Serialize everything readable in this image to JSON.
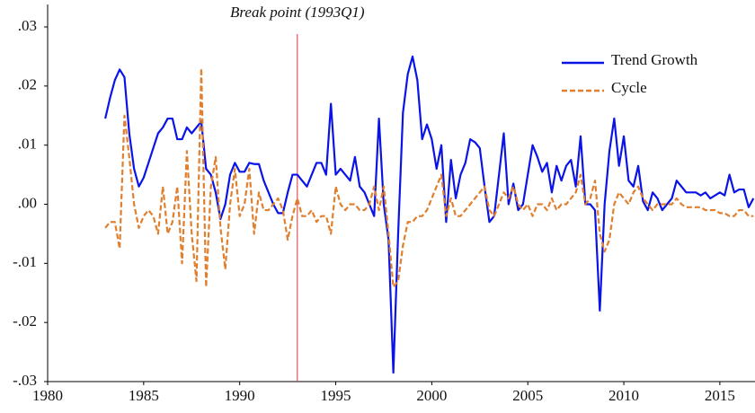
{
  "chart_data": {
    "type": "line",
    "annotation": {
      "x": 1993,
      "label": "Break point (1993Q1)",
      "color": "#e0353a"
    },
    "x": [
      1983,
      1983.25,
      1983.5,
      1983.75,
      1984,
      1984.25,
      1984.5,
      1984.75,
      1985,
      1985.25,
      1985.5,
      1985.75,
      1986,
      1986.25,
      1986.5,
      1986.75,
      1987,
      1987.25,
      1987.5,
      1987.75,
      1988,
      1988.25,
      1988.5,
      1988.75,
      1989,
      1989.25,
      1989.5,
      1989.75,
      1990,
      1990.25,
      1990.5,
      1990.75,
      1991,
      1991.25,
      1991.5,
      1991.75,
      1992,
      1992.25,
      1992.5,
      1992.75,
      1993,
      1993.25,
      1993.5,
      1993.75,
      1994,
      1994.25,
      1994.5,
      1994.75,
      1995,
      1995.25,
      1995.5,
      1995.75,
      1996,
      1996.25,
      1996.5,
      1996.75,
      1997,
      1997.25,
      1997.5,
      1997.75,
      1998,
      1998.25,
      1998.5,
      1998.75,
      1999,
      1999.25,
      1999.5,
      1999.75,
      2000,
      2000.25,
      2000.5,
      2000.75,
      2001,
      2001.25,
      2001.5,
      2001.75,
      2002,
      2002.25,
      2002.5,
      2002.75,
      2003,
      2003.25,
      2003.5,
      2003.75,
      2004,
      2004.25,
      2004.5,
      2004.75,
      2005,
      2005.25,
      2005.5,
      2005.75,
      2006,
      2006.25,
      2006.5,
      2006.75,
      2007,
      2007.25,
      2007.5,
      2007.75,
      2008,
      2008.25,
      2008.5,
      2008.75,
      2009,
      2009.25,
      2009.5,
      2009.75,
      2010,
      2010.25,
      2010.5,
      2010.75,
      2011,
      2011.25,
      2011.5,
      2011.75,
      2012,
      2012.25,
      2012.5,
      2012.75,
      2013,
      2013.25,
      2013.5,
      2013.75,
      2014,
      2014.25,
      2014.5,
      2014.75,
      2015,
      2015.25,
      2015.5,
      2015.75,
      2016,
      2016.25,
      2016.5,
      2016.75
    ],
    "series": [
      {
        "name": "Trend Growth",
        "color": "#0a14e6",
        "dash": false,
        "values": [
          0.0145,
          0.018,
          0.021,
          0.0228,
          0.0215,
          0.012,
          0.006,
          0.003,
          0.0045,
          0.007,
          0.0095,
          0.012,
          0.013,
          0.0145,
          0.0145,
          0.011,
          0.011,
          0.013,
          0.012,
          0.013,
          0.014,
          0.006,
          0.005,
          0.002,
          -0.0025,
          0,
          0.005,
          0.007,
          0.0055,
          0.0055,
          0.007,
          0.0068,
          0.0068,
          0.004,
          0.002,
          0,
          -0.0015,
          -0.0015,
          0.002,
          0.005,
          0.005,
          0.004,
          0.003,
          0.005,
          0.007,
          0.007,
          0.005,
          0.017,
          0.005,
          0.006,
          0.005,
          0.004,
          0.008,
          0.003,
          0.002,
          0,
          -0.002,
          0.0145,
          0,
          -0.006,
          -0.0285,
          -0.005,
          0.0155,
          0.022,
          0.025,
          0.021,
          0.011,
          0.0135,
          0.011,
          0.006,
          0.01,
          -0.003,
          0.0075,
          0.001,
          0.005,
          0.007,
          0.011,
          0.0105,
          0.0095,
          0.003,
          -0.003,
          -0.002,
          0.005,
          0.012,
          0,
          0.0035,
          -0.001,
          0,
          0.005,
          0.01,
          0.008,
          0.0055,
          0.007,
          0.002,
          0.0065,
          0.004,
          0.0065,
          0.0075,
          0.003,
          0.0115,
          0,
          0,
          -0.001,
          -0.018,
          0,
          0.009,
          0.0145,
          0.0065,
          0.0115,
          0.004,
          0.003,
          0.0065,
          0.0005,
          -0.001,
          0.002,
          0.001,
          -0.001,
          0,
          0.001,
          0.004,
          0.003,
          0.002,
          0.002,
          0.002,
          0.0015,
          0.002,
          0.001,
          0.0015,
          0.002,
          0.0015,
          0.005,
          0.002,
          0.0025,
          0.0025,
          -0.0005,
          0.001
        ]
      },
      {
        "name": "Cycle",
        "color": "#e07f2e",
        "dash": true,
        "values": [
          -0.004,
          -0.003,
          -0.003,
          -0.0075,
          0.015,
          0.008,
          0,
          -0.004,
          -0.002,
          -0.001,
          -0.002,
          -0.005,
          0.003,
          -0.005,
          -0.003,
          0.003,
          -0.01,
          0.009,
          -0.005,
          -0.013,
          0.023,
          -0.014,
          0.003,
          0.008,
          -0.004,
          -0.011,
          0,
          0.006,
          -0.002,
          0,
          0.006,
          -0.005,
          0.002,
          -0.001,
          -0.001,
          0,
          0.001,
          -0.001,
          -0.006,
          -0.002,
          0.001,
          -0.002,
          -0.002,
          -0.001,
          -0.003,
          -0.002,
          -0.002,
          -0.005,
          0.003,
          0,
          -0.001,
          0,
          0,
          -0.001,
          -0.001,
          0,
          0.003,
          -0.001,
          0.003,
          -0.005,
          -0.014,
          -0.013,
          -0.007,
          -0.003,
          -0.003,
          -0.002,
          -0.002,
          -0.001,
          0.001,
          0.003,
          0.005,
          -0.002,
          0.001,
          -0.002,
          -0.002,
          -0.001,
          0,
          0.001,
          0.002,
          0.003,
          -0.001,
          -0.002,
          0,
          0.002,
          0.001,
          0.003,
          0,
          -0.001,
          0,
          -0.002,
          0,
          0,
          -0.001,
          0.001,
          -0.001,
          0,
          0,
          0.001,
          0.002,
          0.005,
          0,
          0.001,
          0.004,
          -0.005,
          -0.008,
          -0.006,
          0,
          0.002,
          0.001,
          0,
          0.002,
          0.003,
          0.001,
          0,
          -0.001,
          0,
          0,
          0,
          0,
          0.001,
          0,
          -0.0005,
          -0.0005,
          -0.0005,
          -0.0005,
          -0.001,
          -0.001,
          -0.001,
          -0.0015,
          -0.0015,
          -0.002,
          -0.002,
          -0.001,
          -0.001,
          -0.002,
          -0.002
        ]
      }
    ],
    "xlim": [
      1980,
      2016.83
    ],
    "xticks": [
      1980,
      1985,
      1990,
      1995,
      2000,
      2005,
      2010,
      2015
    ],
    "ylim": [
      -0.03,
      0.03
    ],
    "yticks": [
      {
        "value": -0.03,
        "label": "-.03"
      },
      {
        "value": -0.02,
        "label": "-.02"
      },
      {
        "value": -0.01,
        "label": "-.01"
      },
      {
        "value": 0,
        "label": ".00"
      },
      {
        "value": 0.01,
        "label": ".01"
      },
      {
        "value": 0.02,
        "label": ".02"
      },
      {
        "value": 0.03,
        "label": ".03"
      }
    ],
    "legend": "upper right",
    "grid": false
  }
}
